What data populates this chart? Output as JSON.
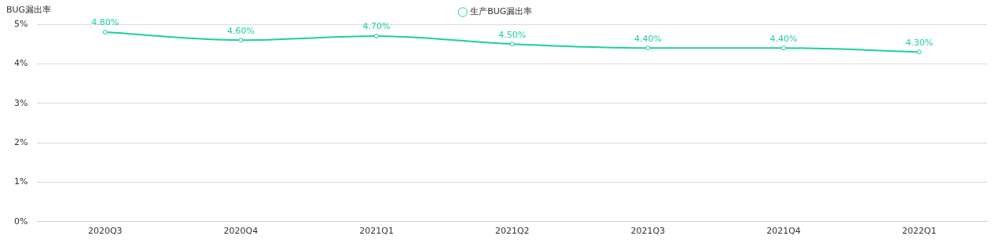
{
  "chart_data": {
    "type": "line",
    "ylabel": "BUG漏出率",
    "categories": [
      "2020Q3",
      "2020Q4",
      "2021Q1",
      "2021Q2",
      "2021Q3",
      "2021Q4",
      "2022Q1"
    ],
    "series": [
      {
        "name": "生产BUG漏出率",
        "color": "#1ccfa2",
        "values": [
          4.8,
          4.6,
          4.7,
          4.5,
          4.4,
          4.4,
          4.3
        ],
        "value_labels": [
          "4.80%",
          "4.60%",
          "4.70%",
          "4.50%",
          "4.40%",
          "4.40%",
          "4.30%"
        ]
      }
    ],
    "ylim": [
      0,
      5
    ],
    "yticks": [
      {
        "value": 0,
        "label": "0%"
      },
      {
        "value": 1,
        "label": "1%"
      },
      {
        "value": 2,
        "label": "2%"
      },
      {
        "value": 3,
        "label": "3%"
      },
      {
        "value": 4,
        "label": "4%"
      },
      {
        "value": 5,
        "label": "5%"
      }
    ],
    "grid": "y",
    "legend": "top",
    "marker": "circle",
    "line_style": "solid"
  }
}
